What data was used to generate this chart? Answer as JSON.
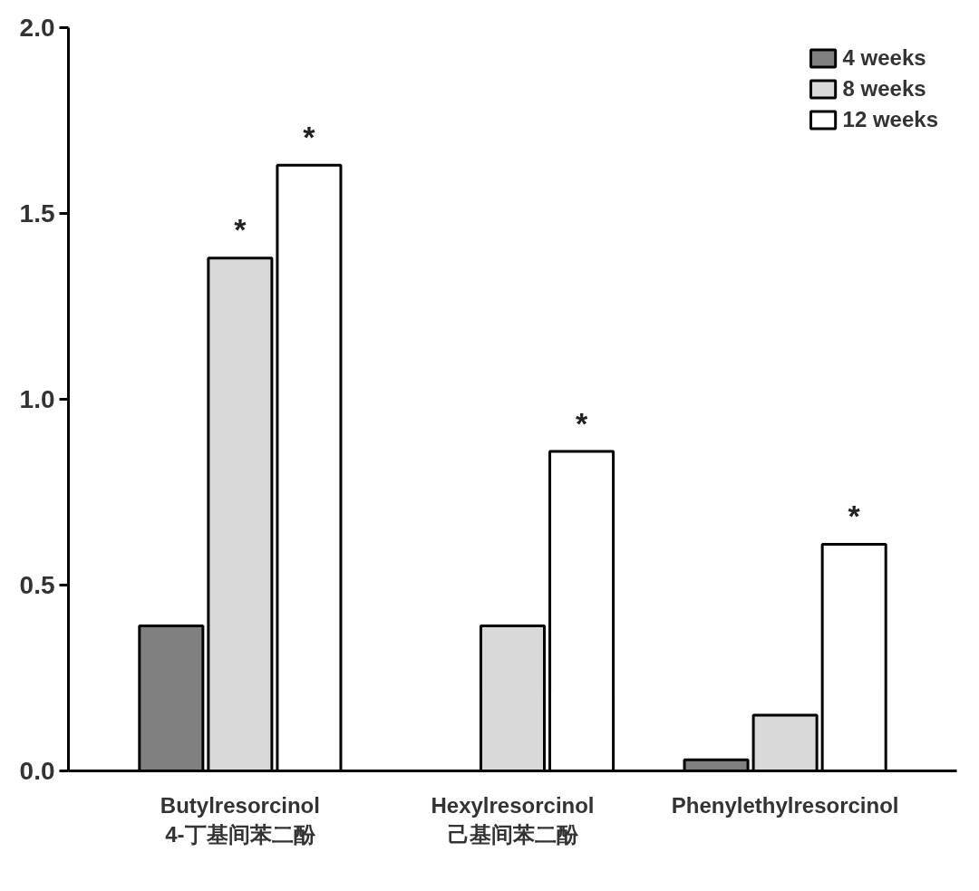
{
  "chart_data": {
    "type": "bar",
    "categories": [
      "Butylresorcinol\n4-丁基间苯二酚",
      "Hexylresorcinol\n己基间苯二酚",
      "Phenylethylresorcinol"
    ],
    "series": [
      {
        "name": "4 weeks",
        "color": "#808080",
        "values": [
          0.39,
          null,
          0.03
        ]
      },
      {
        "name": "8 weeks",
        "color": "#d9d9d9",
        "values": [
          1.38,
          0.39,
          0.15
        ],
        "value_labels": [
          "*",
          null,
          null
        ]
      },
      {
        "name": "12 weeks",
        "color": "#ffffff",
        "values": [
          1.63,
          0.86,
          0.61
        ],
        "value_labels": [
          "*",
          "*",
          "*"
        ]
      }
    ],
    "ylim": [
      0,
      2.0
    ],
    "yticks": [
      {
        "value": 0,
        "label": "0.0"
      },
      {
        "value": 0.5,
        "label": "0.5"
      },
      {
        "value": 1.0,
        "label": "1.0"
      },
      {
        "value": 1.5,
        "label": "1.5"
      },
      {
        "value": 2.0,
        "label": "2.0"
      }
    ],
    "legend": "top right",
    "grid": false
  }
}
